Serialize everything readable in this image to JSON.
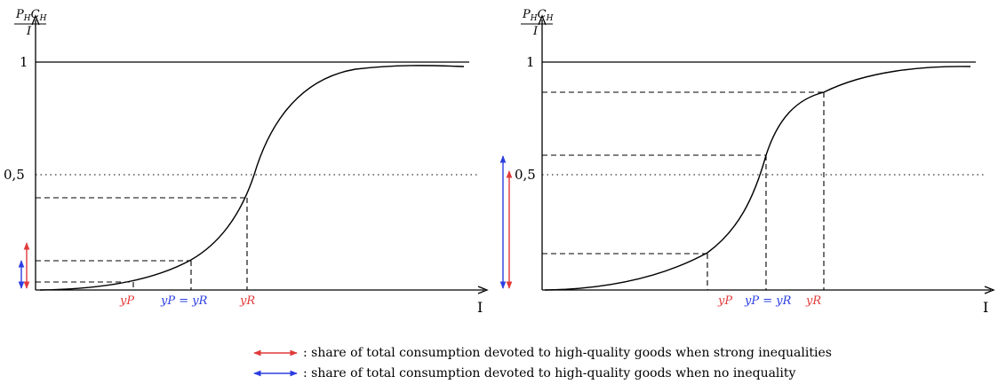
{
  "y_axis_label": {
    "num_p": "P",
    "num_p_sub": "H",
    "num_c": "C",
    "num_c_sub": "H",
    "den": "I"
  },
  "x_axis_label": "I",
  "tick_one": "1",
  "tick_half": "0,5",
  "panels": [
    {
      "labels": {
        "yp": "yP",
        "ypyr": "yP = yR",
        "yr": "yR"
      }
    },
    {
      "labels": {
        "yp": "yP",
        "ypyr": "yP = yR",
        "yr": "yR"
      }
    }
  ],
  "legend": {
    "red": ": share of total consumption devoted to high-quality goods when strong inequalities",
    "blue": ": share of total consumption devoted to high-quality goods when no inequality"
  },
  "colors": {
    "red": "#e23a3a",
    "blue": "#2b3ee0"
  }
}
